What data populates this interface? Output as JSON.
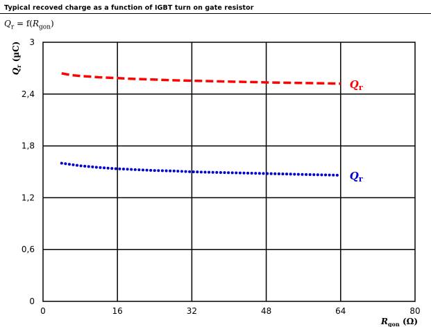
{
  "page": {
    "title": "Typical recoved charge as a function of IGBT turn on gate resistor",
    "subtitle_q": "Q",
    "subtitle_q_sub": "r",
    "subtitle_eq": " = f(",
    "subtitle_r": "R",
    "subtitle_r_sub": "gon",
    "subtitle_close": ")"
  },
  "chart_data": {
    "type": "line",
    "xlabel": "R_gon (Ω)",
    "xlabel_main": "R",
    "xlabel_sub": "gon",
    "xlabel_unit": " (Ω)",
    "ylabel": "Q_r (µC)",
    "ylabel_main": "Q",
    "ylabel_sub": "r",
    "ylabel_unit": " (µC)",
    "xlim": [
      0,
      80
    ],
    "ylim": [
      0,
      3
    ],
    "xticks": [
      0,
      16,
      32,
      48,
      64,
      80
    ],
    "yticks": [
      0,
      0.6,
      1.2,
      1.8,
      2.4,
      3
    ],
    "xtick_labels": [
      "0",
      "16",
      "32",
      "48",
      "64",
      "80"
    ],
    "ytick_labels": [
      "0",
      "0,6",
      "1,2",
      "1,8",
      "2,4",
      "3"
    ],
    "grid": true,
    "series": [
      {
        "label_main": "Q",
        "label_sub": "r",
        "color": "#ff0000",
        "style": "dashed",
        "x": [
          4,
          6,
          8,
          12,
          16,
          20,
          24,
          28,
          32,
          36,
          40,
          44,
          48,
          52,
          56,
          60,
          64
        ],
        "y": [
          2.64,
          2.62,
          2.61,
          2.595,
          2.585,
          2.575,
          2.568,
          2.56,
          2.555,
          2.55,
          2.545,
          2.54,
          2.535,
          2.532,
          2.528,
          2.525,
          2.52
        ]
      },
      {
        "label_main": "Q",
        "label_sub": "r",
        "color": "#0000cc",
        "style": "dotted",
        "x": [
          4,
          6,
          8,
          12,
          16,
          20,
          24,
          28,
          32,
          36,
          40,
          44,
          48,
          52,
          56,
          60,
          64
        ],
        "y": [
          1.6,
          1.585,
          1.57,
          1.55,
          1.535,
          1.525,
          1.515,
          1.51,
          1.5,
          1.495,
          1.49,
          1.485,
          1.48,
          1.475,
          1.47,
          1.465,
          1.46
        ]
      }
    ]
  }
}
